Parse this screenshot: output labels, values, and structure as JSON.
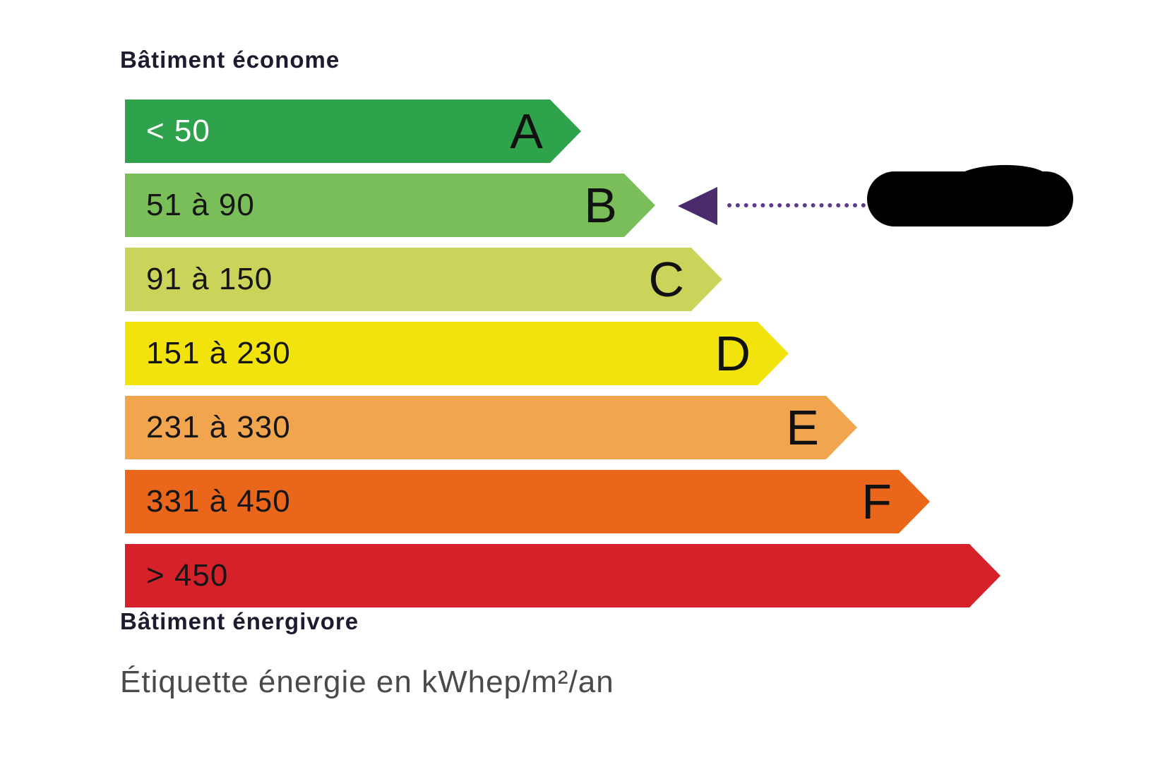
{
  "labels": {
    "top": "Bâtiment économe",
    "bottom": "Bâtiment énergivore",
    "caption": "Étiquette énergie en kWhep/m²/an"
  },
  "chart_data": {
    "type": "bar",
    "orientation": "horizontal",
    "title": "Étiquette énergie en kWhep/m²/an",
    "unit": "kWhep/m²/an",
    "top_annotation": "Bâtiment économe",
    "bottom_annotation": "Bâtiment énergivore",
    "rows": [
      {
        "class": "A",
        "range": "< 50",
        "range_min": null,
        "range_max": 50,
        "letter": "A",
        "color": "#2EA34C",
        "text_color": "#ffffff"
      },
      {
        "class": "B",
        "range": "51 à 90",
        "range_min": 51,
        "range_max": 90,
        "letter": "B",
        "color": "#79BE59",
        "text_color": "#161616"
      },
      {
        "class": "C",
        "range": "91 à 150",
        "range_min": 91,
        "range_max": 150,
        "letter": "C",
        "color": "#CBD45A",
        "text_color": "#161616"
      },
      {
        "class": "D",
        "range": "151 à 230",
        "range_min": 151,
        "range_max": 230,
        "letter": "D",
        "color": "#F2E30C",
        "text_color": "#161616"
      },
      {
        "class": "E",
        "range": "231 à 330",
        "range_min": 231,
        "range_max": 330,
        "letter": "E",
        "color": "#F2A54F",
        "text_color": "#161616"
      },
      {
        "class": "F",
        "range": "331 à 450",
        "range_min": 331,
        "range_max": 450,
        "letter": "F",
        "color": "#E9661A",
        "text_color": "#161616"
      },
      {
        "class": "G",
        "range": "> 450",
        "range_min": 450,
        "range_max": null,
        "letter": "",
        "color": "#D5212A",
        "text_color": "#161616"
      }
    ],
    "selected": {
      "class": "B",
      "value_display": "redacted",
      "arrow_color": "#4B2A6E",
      "dotted_line_color": "#5E3A8C"
    }
  }
}
